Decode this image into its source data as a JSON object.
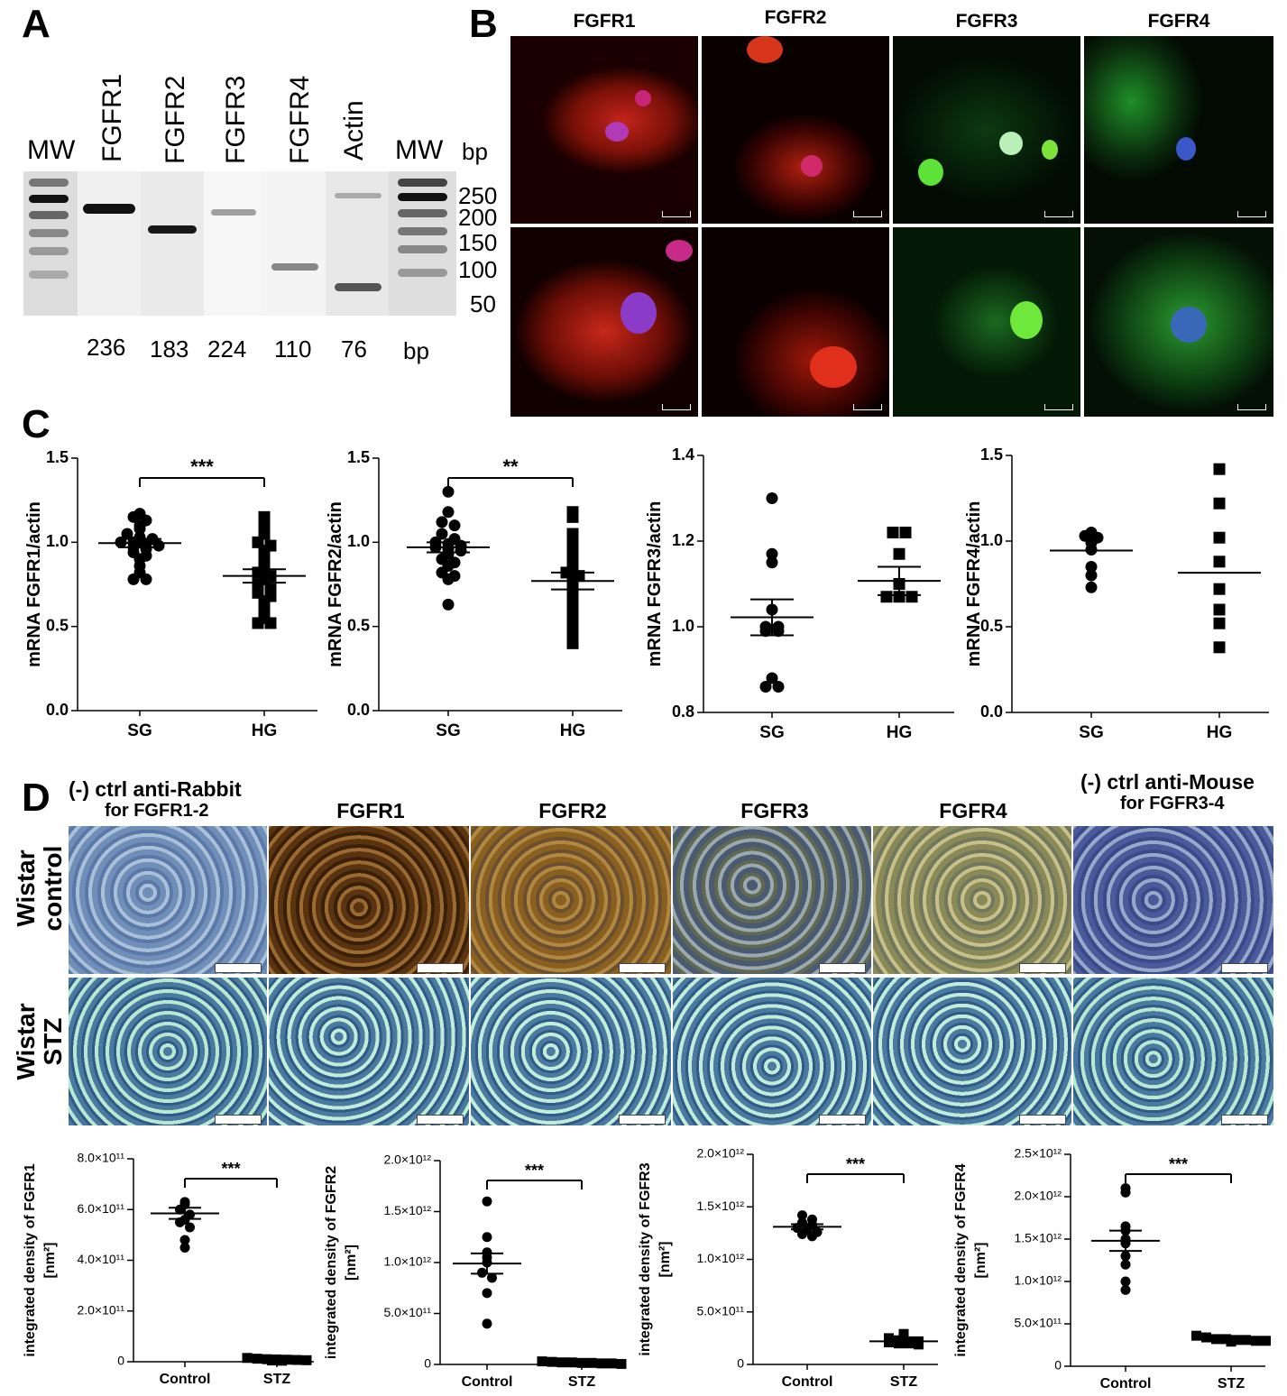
{
  "panels": {
    "A": "A",
    "B": "B",
    "C": "C",
    "D": "D"
  },
  "gel": {
    "lanes": [
      "MW",
      "FGFR1",
      "FGFR2",
      "FGFR3",
      "FGFR4",
      "Actin",
      "MW"
    ],
    "bp_header": "bp",
    "marker_sizes": [
      "250",
      "200",
      "150",
      "100",
      "50"
    ],
    "product_sizes": [
      "236",
      "183",
      "224",
      "110",
      "76"
    ],
    "bp_footer": "bp"
  },
  "microscopy": {
    "titles": [
      "FGFR1",
      "FGFR2",
      "FGFR3",
      "FGFR4"
    ]
  },
  "histology": {
    "neg_rabbit": {
      "line1": "(-) ctrl anti-Rabbit",
      "line2": "for FGFR1-2"
    },
    "titles": [
      "FGFR1",
      "FGFR2",
      "FGFR3",
      "FGFR4"
    ],
    "neg_mouse": {
      "line1": "(-) ctrl anti-Mouse",
      "line2": "for FGFR3-4"
    },
    "rows": [
      {
        "line1": "Wistar",
        "line2": "control"
      },
      {
        "line1": "Wistar",
        "line2": "STZ"
      }
    ]
  },
  "colors": {
    "red_stain": "#e0301c",
    "green_stain": "#3cc83c",
    "brown": "#8a5a2a",
    "blue_hist": "#6f8fb0"
  },
  "chart_data": [
    {
      "type": "scatter",
      "panel": "C",
      "ylabel": "mRNA FGFR1/actin",
      "ylim": [
        0,
        1.5
      ],
      "yticks": [
        0.0,
        0.5,
        1.0,
        1.5
      ],
      "yticklabels": [
        "0.0",
        "0.5",
        "1.0",
        "1.5"
      ],
      "categories": [
        "SG",
        "HG"
      ],
      "signif": "***",
      "series": [
        {
          "name": "SG",
          "marker": "circle",
          "values": [
            1.17,
            1.15,
            1.13,
            1.1,
            1.08,
            1.05,
            1.03,
            1.02,
            1.0,
            1.0,
            0.99,
            0.98,
            0.97,
            0.96,
            0.94,
            0.92,
            0.9,
            0.86,
            0.82,
            0.78,
            0.78
          ],
          "mean": 0.995,
          "sem": 0.025
        },
        {
          "name": "HG",
          "marker": "square",
          "values": [
            1.15,
            1.1,
            1.05,
            1.0,
            0.98,
            0.95,
            0.92,
            0.9,
            0.85,
            0.82,
            0.8,
            0.78,
            0.75,
            0.72,
            0.7,
            0.68,
            0.65,
            0.62,
            0.58,
            0.55,
            0.52,
            0.52
          ],
          "mean": 0.8,
          "sem": 0.04
        }
      ]
    },
    {
      "type": "scatter",
      "panel": "C",
      "ylabel": "mRNA FGFR2/actin",
      "ylim": [
        0,
        1.5
      ],
      "yticks": [
        0.0,
        0.5,
        1.0,
        1.5
      ],
      "yticklabels": [
        "0.0",
        "0.5",
        "1.0",
        "1.5"
      ],
      "categories": [
        "SG",
        "HG"
      ],
      "signif": "**",
      "series": [
        {
          "name": "SG",
          "marker": "circle",
          "values": [
            1.3,
            1.18,
            1.12,
            1.1,
            1.05,
            1.02,
            1.0,
            0.99,
            0.98,
            0.97,
            0.96,
            0.95,
            0.93,
            0.9,
            0.88,
            0.86,
            0.82,
            0.8,
            0.78,
            0.63
          ],
          "mean": 0.97,
          "sem": 0.03
        },
        {
          "name": "HG",
          "marker": "square",
          "values": [
            1.18,
            1.15,
            1.05,
            1.0,
            0.95,
            0.92,
            0.9,
            0.85,
            0.82,
            0.8,
            0.78,
            0.72,
            0.7,
            0.65,
            0.62,
            0.6,
            0.55,
            0.5,
            0.45,
            0.4
          ],
          "mean": 0.77,
          "sem": 0.05
        }
      ]
    },
    {
      "type": "scatter",
      "panel": "C",
      "ylabel": "mRNA FGFR3/actin",
      "ylim": [
        0.8,
        1.4
      ],
      "yticks": [
        0.8,
        1.0,
        1.2,
        1.4
      ],
      "yticklabels": [
        "0.8",
        "1.0",
        "1.2",
        "1.4"
      ],
      "categories": [
        "SG",
        "HG"
      ],
      "signif": "",
      "series": [
        {
          "name": "SG",
          "marker": "circle",
          "values": [
            1.3,
            1.17,
            1.15,
            1.04,
            1.0,
            1.0,
            0.99,
            0.99,
            0.88,
            0.86,
            0.86
          ],
          "mean": 1.022,
          "sem": 0.042
        },
        {
          "name": "HG",
          "marker": "square",
          "values": [
            1.22,
            1.22,
            1.17,
            1.1,
            1.07,
            1.07,
            1.07
          ],
          "mean": 1.107,
          "sem": 0.033
        }
      ]
    },
    {
      "type": "scatter",
      "panel": "C",
      "ylabel": "mRNA FGFR4/actin",
      "ylim": [
        0,
        1.5
      ],
      "yticks": [
        0.0,
        0.5,
        1.0,
        1.5
      ],
      "yticklabels": [
        "0.0",
        "0.5",
        "1.0",
        "1.5"
      ],
      "categories": [
        "SG",
        "HG"
      ],
      "signif": "",
      "series": [
        {
          "name": "SG",
          "marker": "circle",
          "values": [
            1.05,
            1.03,
            1.02,
            0.99,
            0.95,
            0.85,
            0.8,
            0.73
          ],
          "mean": 0.945,
          "sem": 0.0
        },
        {
          "name": "HG",
          "marker": "square",
          "values": [
            1.42,
            1.22,
            1.02,
            0.88,
            0.72,
            0.6,
            0.52,
            0.38
          ],
          "mean": 0.815,
          "sem": 0.0
        }
      ]
    },
    {
      "type": "scatter",
      "panel": "D",
      "ylabel": "integrated density of FGFR1",
      "ylabel2": "[nm²]",
      "ylim": [
        0,
        800000000000.0
      ],
      "yticks": [
        0,
        200000000000.0,
        400000000000.0,
        600000000000.0,
        800000000000.0
      ],
      "yticklabels": [
        "0",
        "2.0×10¹¹",
        "4.0×10¹¹",
        "6.0×10¹¹",
        "8.0×10¹¹"
      ],
      "categories": [
        "Control",
        "STZ"
      ],
      "signif": "***",
      "series": [
        {
          "name": "Control",
          "marker": "circle",
          "values": [
            630000000000.0,
            620000000000.0,
            600000000000.0,
            580000000000.0,
            560000000000.0,
            550000000000.0,
            530000000000.0,
            480000000000.0,
            450000000000.0
          ],
          "mean": 585000000000.0,
          "sem": 22000000000.0
        },
        {
          "name": "STZ",
          "marker": "square",
          "values": [
            15000000000.0,
            12000000000.0,
            10000000000.0,
            9000000000.0,
            8000000000.0,
            7000000000.0,
            6000000000.0,
            5000000000.0,
            4000000000.0
          ],
          "mean": 8000000000.0,
          "sem": 2000000000.0
        }
      ]
    },
    {
      "type": "scatter",
      "panel": "D",
      "ylabel": "integrated density of FGFR2",
      "ylabel2": "[nm²]",
      "ylim": [
        0,
        2000000000000.0
      ],
      "yticks": [
        0,
        500000000000.0,
        1000000000000.0,
        1500000000000.0,
        2000000000000.0
      ],
      "yticklabels": [
        "0",
        "5.0×10¹¹",
        "1.0×10¹²",
        "1.5×10¹²",
        "2.0×10¹²"
      ],
      "categories": [
        "Control",
        "STZ"
      ],
      "signif": "***",
      "series": [
        {
          "name": "Control",
          "marker": "circle",
          "values": [
            1600000000000.0,
            1250000000000.0,
            1100000000000.0,
            1050000000000.0,
            1000000000000.0,
            900000000000.0,
            850000000000.0,
            700000000000.0,
            400000000000.0
          ],
          "mean": 990000000000.0,
          "sem": 100000000000.0
        },
        {
          "name": "STZ",
          "marker": "square",
          "values": [
            30000000000.0,
            25000000000.0,
            20000000000.0,
            20000000000.0,
            15000000000.0,
            15000000000.0,
            10000000000.0,
            10000000000.0,
            5000000000.0
          ],
          "mean": 16000000000.0,
          "sem": 3000000000.0
        }
      ]
    },
    {
      "type": "scatter",
      "panel": "D",
      "ylabel": "integrated density of FGFR3",
      "ylabel2": "[nm²]",
      "ylim": [
        0,
        2000000000000.0
      ],
      "yticks": [
        0,
        500000000000.0,
        1000000000000.0,
        1500000000000.0,
        2000000000000.0
      ],
      "yticklabels": [
        "0",
        "5.0×10¹¹",
        "1.0×10¹²",
        "1.5×10¹²",
        "2.0×10¹²"
      ],
      "categories": [
        "Control",
        "STZ"
      ],
      "signif": "***",
      "series": [
        {
          "name": "Control",
          "marker": "circle",
          "values": [
            1420000000000.0,
            1380000000000.0,
            1350000000000.0,
            1330000000000.0,
            1300000000000.0,
            1280000000000.0,
            1260000000000.0,
            1240000000000.0,
            1220000000000.0
          ],
          "mean": 1310000000000.0,
          "sem": 25000000000.0
        },
        {
          "name": "STZ",
          "marker": "square",
          "values": [
            290000000000.0,
            250000000000.0,
            230000000000.0,
            220000000000.0,
            220000000000.0,
            210000000000.0,
            200000000000.0,
            200000000000.0,
            190000000000.0
          ],
          "mean": 220000000000.0,
          "sem": 10000000000.0
        }
      ]
    },
    {
      "type": "scatter",
      "panel": "D",
      "ylabel": "integrated density of FGFR4",
      "ylabel2": "[nm²]",
      "ylim": [
        0,
        2500000000000.0
      ],
      "yticks": [
        0,
        500000000000.0,
        1000000000000.0,
        1500000000000.0,
        2000000000000.0,
        2500000000000.0
      ],
      "yticklabels": [
        "0",
        "5.0×10¹¹",
        "1.0×10¹²",
        "1.5×10¹²",
        "2.0×10¹²",
        "2.5×10¹²"
      ],
      "categories": [
        "Control",
        "STZ"
      ],
      "signif": "***",
      "series": [
        {
          "name": "Control",
          "marker": "circle",
          "values": [
            2100000000000.0,
            2050000000000.0,
            1650000000000.0,
            1600000000000.0,
            1500000000000.0,
            1450000000000.0,
            1300000000000.0,
            1200000000000.0,
            1000000000000.0,
            900000000000.0
          ],
          "mean": 1480000000000.0,
          "sem": 120000000000.0
        },
        {
          "name": "STZ",
          "marker": "square",
          "values": [
            360000000000.0,
            340000000000.0,
            320000000000.0,
            320000000000.0,
            310000000000.0,
            310000000000.0,
            300000000000.0,
            300000000000.0,
            290000000000.0
          ],
          "mean": 320000000000.0,
          "sem": 10000000000.0
        }
      ]
    }
  ]
}
